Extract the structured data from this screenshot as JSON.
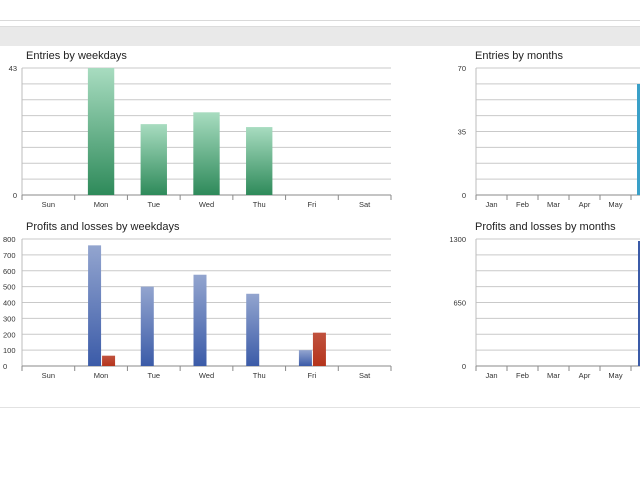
{
  "dashboard": {
    "entries_weekdays_title": "Entries by weekdays",
    "entries_months_title": "Entries by months",
    "profits_weekdays_title": "Profits and losses by weekdays",
    "profits_months_title": "Profits and losses by months"
  },
  "chart_data": [
    {
      "type": "bar",
      "title": "Entries by weekdays",
      "categories": [
        "Sun",
        "Mon",
        "Tue",
        "Wed",
        "Thu",
        "Fri",
        "Sat"
      ],
      "values": [
        0,
        43,
        24,
        28,
        23,
        0,
        0
      ],
      "ylim": [
        0,
        43
      ],
      "yticks": [
        0,
        43
      ],
      "grid": true,
      "colors": {
        "bar_top": "#a8dcc0",
        "bar_bottom": "#2e8a5a"
      }
    },
    {
      "type": "bar",
      "title": "Entries by months",
      "categories": [
        "Jan",
        "Feb",
        "Mar",
        "Apr",
        "May"
      ],
      "values": [
        0,
        0,
        0,
        0,
        0
      ],
      "ylim": [
        0,
        70
      ],
      "yticks": [
        0,
        35,
        70
      ],
      "grid": true,
      "colors": {
        "clipped_bar": "#3aa0c8"
      }
    },
    {
      "type": "bar",
      "title": "Profits and losses by weekdays",
      "categories": [
        "Sun",
        "Mon",
        "Tue",
        "Wed",
        "Thu",
        "Fri",
        "Sat"
      ],
      "series": [
        {
          "values": [
            0,
            760,
            500,
            575,
            455,
            100,
            0
          ],
          "color": "#3b5ba8"
        },
        {
          "values": [
            0,
            65,
            0,
            0,
            0,
            210,
            0
          ],
          "color": "#b5341c"
        }
      ],
      "ylim": [
        0,
        800
      ],
      "yticks": [
        0,
        100,
        200,
        300,
        400,
        500,
        600,
        700,
        800
      ],
      "grid": true
    },
    {
      "type": "bar",
      "title": "Profits and losses by months",
      "categories": [
        "Jan",
        "Feb",
        "Mar",
        "Apr",
        "May"
      ],
      "values": [
        0,
        0,
        0,
        0,
        0
      ],
      "ylim": [
        0,
        1300
      ],
      "yticks": [
        0,
        650,
        1300
      ],
      "grid": true,
      "colors": {
        "clipped_bar": "#3b5ba8"
      }
    }
  ]
}
